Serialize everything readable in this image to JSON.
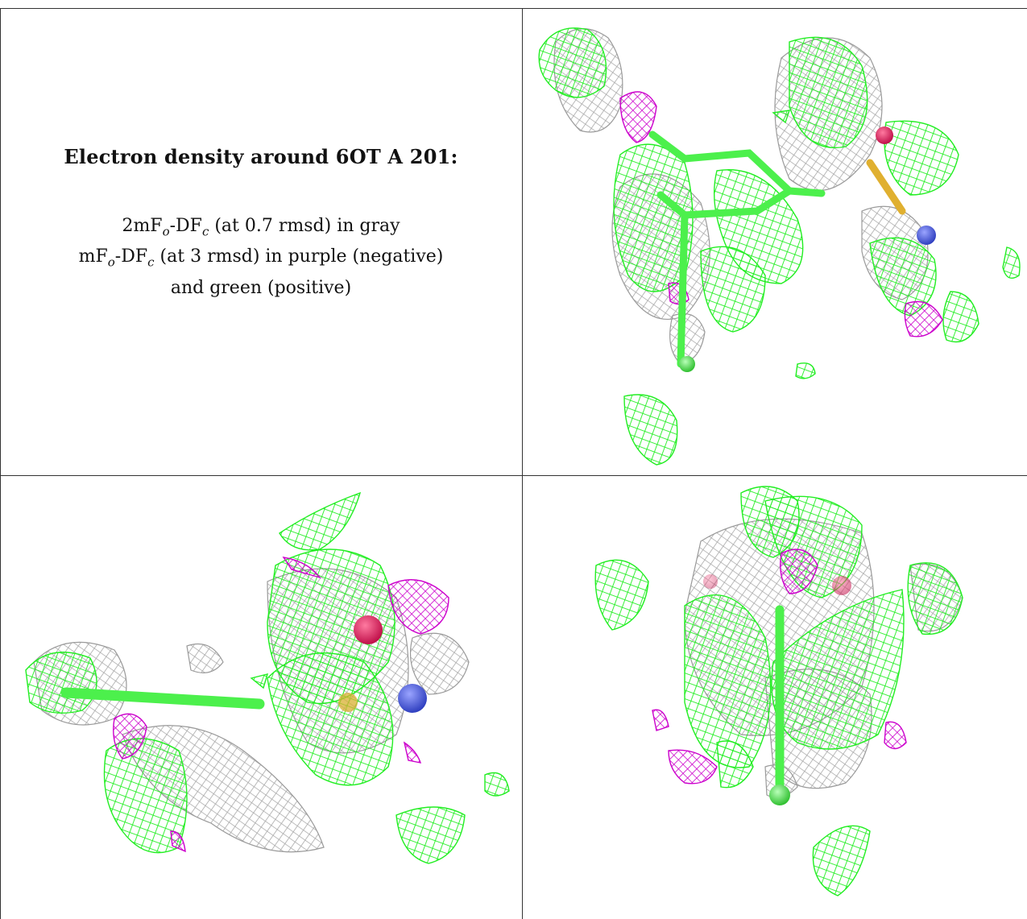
{
  "caption": {
    "title": "Electron density around 6OT A 201:",
    "line1_a": "2mF",
    "line1_sub1": "o",
    "line1_b": "-DF",
    "line1_sub2": "c",
    "line1_c": " (at 0.7 rmsd) in gray",
    "line2_a": "mF",
    "line2_sub1": "o",
    "line2_b": "-DF",
    "line2_sub2": "c",
    "line2_c": " (at 3 rmsd) in purple (negative)",
    "line3": "and green (positive)"
  },
  "colors": {
    "gray_mesh": "#b4b4b4",
    "negative_mesh": "#cc00cc",
    "positive_mesh": "#22ee22",
    "stick": "#4cf04c",
    "oxygen": "#e0195a",
    "nitrogen": "#4050d0",
    "sulfur": "#e0b030"
  },
  "panels": [
    {
      "view": "top"
    },
    {
      "view": "side"
    },
    {
      "view": "end-on"
    }
  ]
}
